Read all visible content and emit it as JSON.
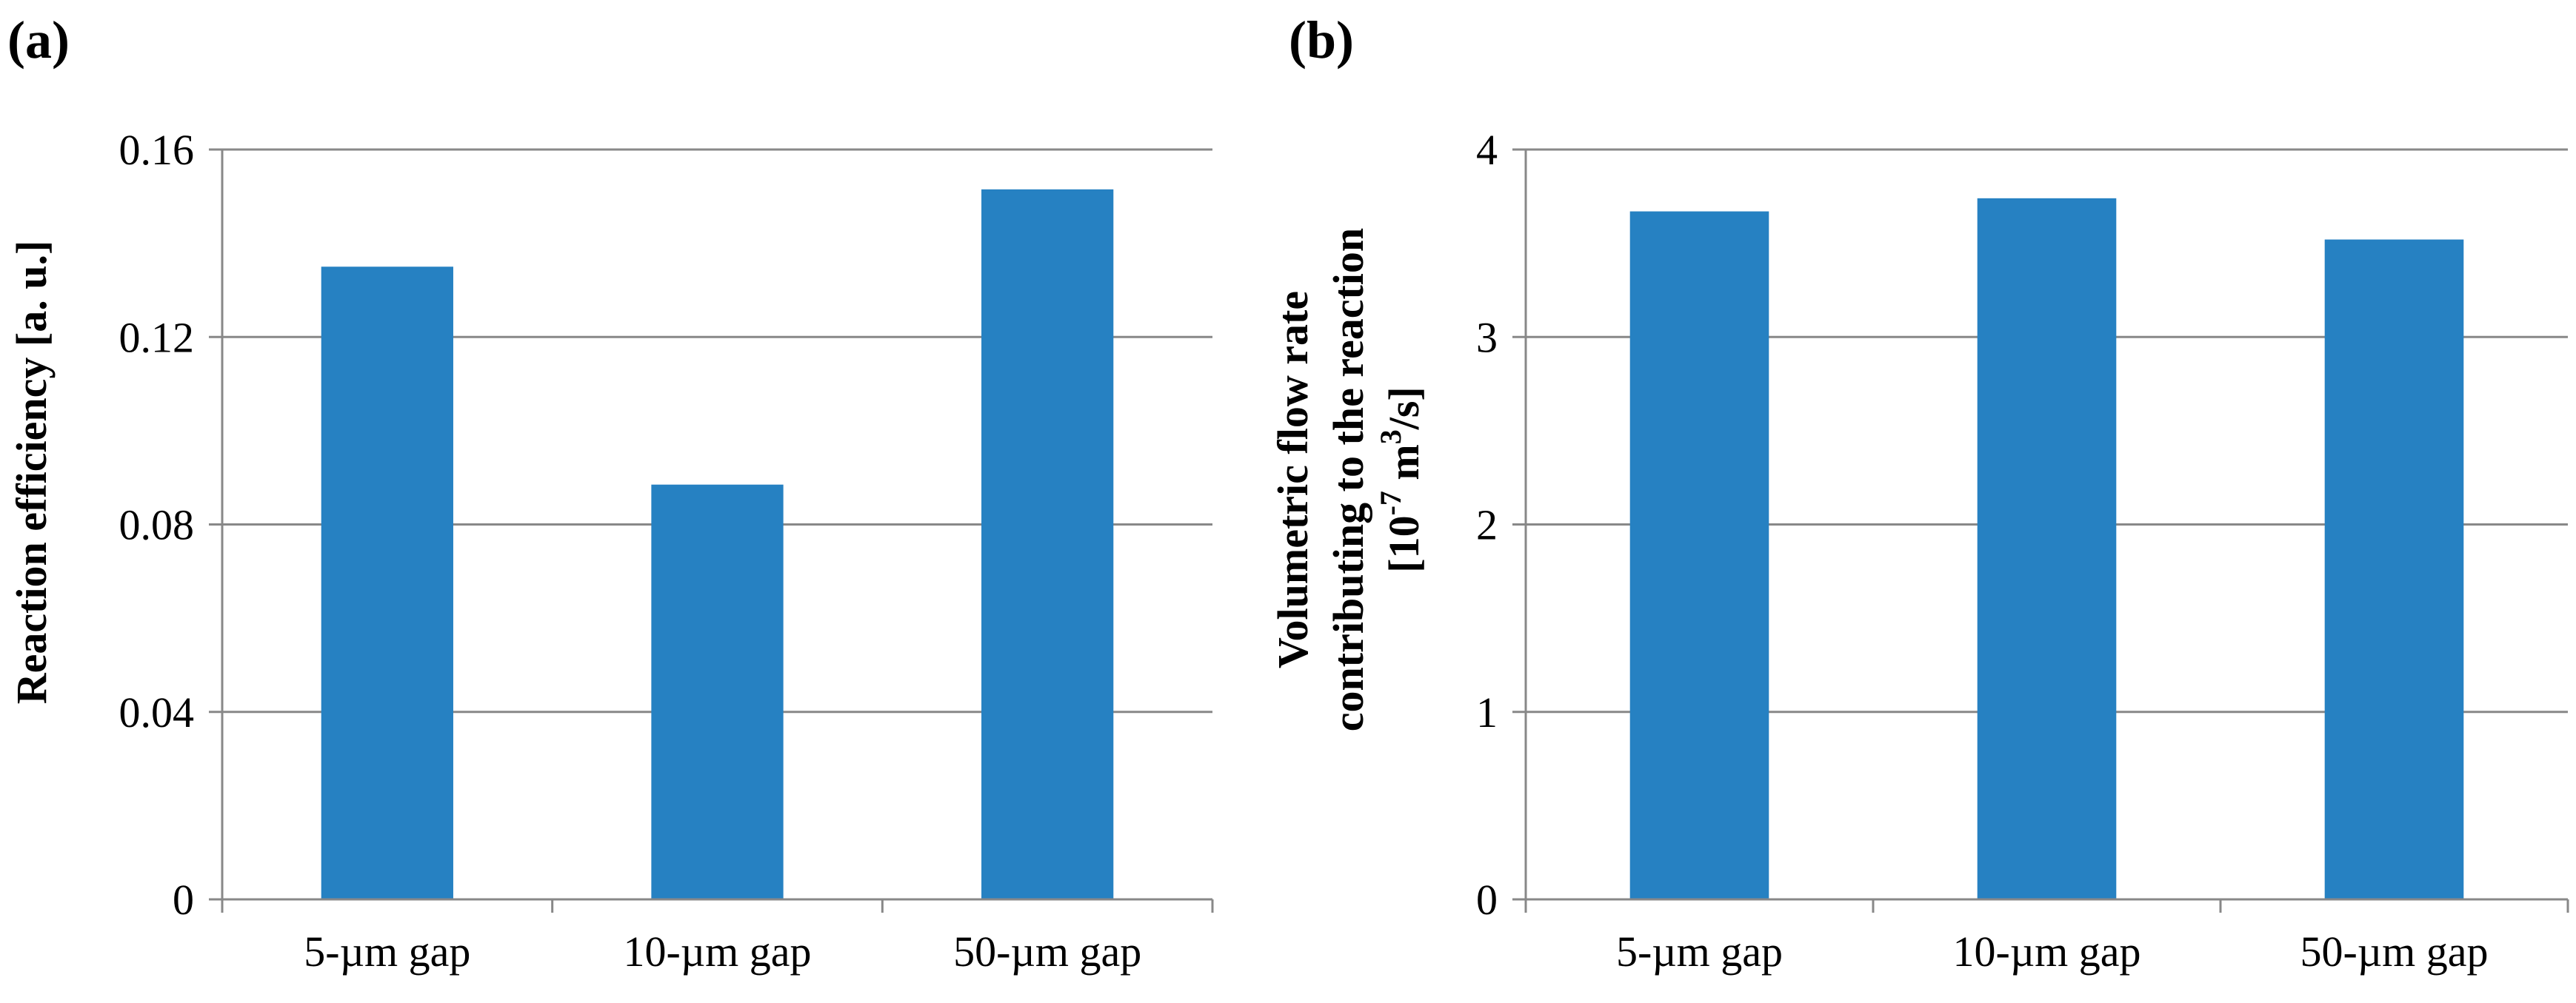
{
  "chart_data": [
    {
      "panel_label": "(a)",
      "type": "bar",
      "categories": [
        "5-µm gap",
        "10-µm gap",
        "50-µm gap"
      ],
      "values": [
        0.135,
        0.0885,
        0.1515
      ],
      "ylabel": "Reaction efficiency [a. u.]",
      "ylim": [
        0,
        0.16
      ],
      "yticks": [
        "0",
        "0.04",
        "0.08",
        "0.12",
        "0.16"
      ],
      "ytick_values": [
        0,
        0.04,
        0.08,
        0.12,
        0.16
      ],
      "grid": true,
      "bar_color": "#2681C2"
    },
    {
      "panel_label": "(b)",
      "type": "bar",
      "categories": [
        "5-µm gap",
        "10-µm gap",
        "50-µm gap"
      ],
      "values": [
        3.67,
        3.74,
        3.52
      ],
      "ylabel_lines": [
        "Volumetric flow rate",
        "contributing to the reaction"
      ],
      "ylabel_unit": {
        "prefix": "[10",
        "exp": "-7",
        "mid": " m",
        "exp2": "3",
        "suffix": "/s]"
      },
      "ylim": [
        0,
        4
      ],
      "yticks": [
        "0",
        "1",
        "2",
        "3",
        "4"
      ],
      "ytick_values": [
        0,
        1,
        2,
        3,
        4
      ],
      "grid": true,
      "bar_color": "#2681C2"
    }
  ]
}
